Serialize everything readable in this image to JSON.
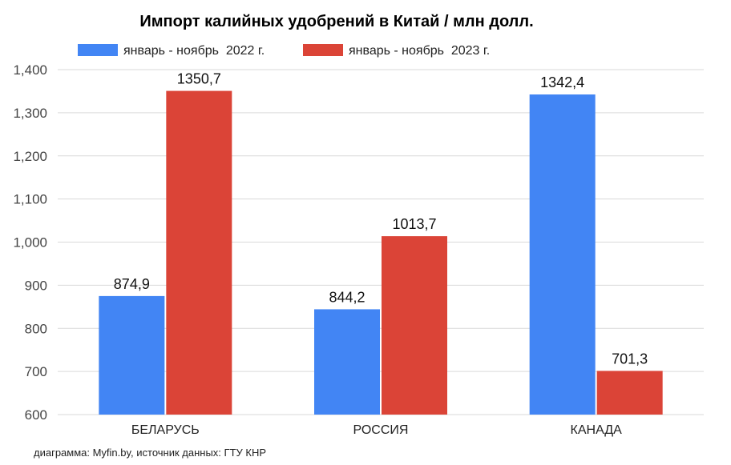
{
  "chart_data": {
    "type": "bar",
    "title": "Импорт калийных удобрений в Китай / млн долл.",
    "categories": [
      "БЕЛАРУСЬ",
      "РОССИЯ",
      "КАНАДА"
    ],
    "series": [
      {
        "name": "январь - ноябрь  2022 г.",
        "color": "#4285f4",
        "values": [
          874.9,
          844.2,
          1342.4
        ],
        "labels": [
          "874,9",
          "844,2",
          "1342,4"
        ]
      },
      {
        "name": "январь - ноябрь  2023 г.",
        "color": "#db4437",
        "values": [
          1350.7,
          1013.7,
          701.3
        ],
        "labels": [
          "1350,7",
          "1013,7",
          "701,3"
        ]
      }
    ],
    "ylim": [
      600,
      1400
    ],
    "yticks": [
      600,
      700,
      800,
      900,
      1000,
      1100,
      1200,
      1300,
      1400
    ],
    "ytick_labels": [
      "600",
      "700",
      "800",
      "900",
      "1,000",
      "1,100",
      "1,200",
      "1,300",
      "1,400"
    ],
    "xlabel": "",
    "ylabel": "",
    "grid": true,
    "legend_position": "top"
  },
  "source_note": "диаграмма: Myfin.by, источник данных: ГТУ КНР"
}
